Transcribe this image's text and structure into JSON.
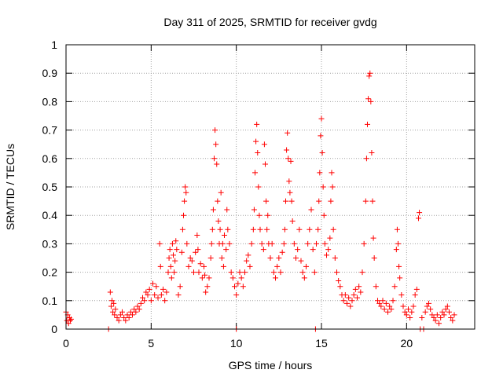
{
  "chart_data": {
    "type": "scatter",
    "title": "Day 311 of 2025, SRMTID for receiver gvdg",
    "xlabel": "GPS time / hours",
    "ylabel": "SRMTID / TECUs",
    "xlim": [
      0,
      24
    ],
    "ylim": [
      0,
      1
    ],
    "grid": true,
    "marker": "+",
    "series_color": "#ff0000",
    "x_ticks": [
      {
        "value": 0,
        "label": "0"
      },
      {
        "value": 5,
        "label": "5"
      },
      {
        "value": 10,
        "label": "10"
      },
      {
        "value": 15,
        "label": "15"
      },
      {
        "value": 20,
        "label": "20"
      }
    ],
    "y_ticks": [
      {
        "value": 0,
        "label": "0"
      },
      {
        "value": 0.1,
        "label": "0.1"
      },
      {
        "value": 0.2,
        "label": "0.2"
      },
      {
        "value": 0.3,
        "label": "0.3"
      },
      {
        "value": 0.4,
        "label": "0.4"
      },
      {
        "value": 0.5,
        "label": "0.5"
      },
      {
        "value": 0.6,
        "label": "0.6"
      },
      {
        "value": 0.7,
        "label": "0.7"
      },
      {
        "value": 0.8,
        "label": "0.8"
      },
      {
        "value": 0.9,
        "label": "0.9"
      },
      {
        "value": 1,
        "label": "1"
      }
    ],
    "series": [
      {
        "name": "gvdg",
        "points": [
          [
            0.0,
            0.06
          ],
          [
            0.05,
            0.03
          ],
          [
            0.1,
            0.05
          ],
          [
            0.15,
            0.02
          ],
          [
            0.2,
            0.04
          ],
          [
            0.25,
            0.03
          ],
          [
            0.3,
            0.035
          ],
          [
            2.5,
            0.0
          ],
          [
            2.6,
            0.13
          ],
          [
            2.65,
            0.08
          ],
          [
            2.7,
            0.1
          ],
          [
            2.75,
            0.06
          ],
          [
            2.8,
            0.09
          ],
          [
            2.85,
            0.05
          ],
          [
            2.9,
            0.07
          ],
          [
            3.0,
            0.04
          ],
          [
            3.1,
            0.03
          ],
          [
            3.2,
            0.05
          ],
          [
            3.3,
            0.06
          ],
          [
            3.4,
            0.04
          ],
          [
            3.5,
            0.03
          ],
          [
            3.6,
            0.05
          ],
          [
            3.7,
            0.04
          ],
          [
            3.8,
            0.06
          ],
          [
            3.9,
            0.05
          ],
          [
            4.0,
            0.07
          ],
          [
            4.1,
            0.06
          ],
          [
            4.2,
            0.08
          ],
          [
            4.3,
            0.07
          ],
          [
            4.4,
            0.09
          ],
          [
            4.5,
            0.11
          ],
          [
            4.6,
            0.1
          ],
          [
            4.7,
            0.13
          ],
          [
            4.8,
            0.12
          ],
          [
            4.9,
            0.14
          ],
          [
            5.0,
            0.1
          ],
          [
            5.1,
            0.16
          ],
          [
            5.2,
            0.12
          ],
          [
            5.3,
            0.15
          ],
          [
            5.4,
            0.11
          ],
          [
            5.5,
            0.3
          ],
          [
            5.55,
            0.22
          ],
          [
            5.6,
            0.12
          ],
          [
            5.7,
            0.14
          ],
          [
            5.8,
            0.1
          ],
          [
            5.9,
            0.13
          ],
          [
            6.0,
            0.2
          ],
          [
            6.05,
            0.25
          ],
          [
            6.1,
            0.28
          ],
          [
            6.15,
            0.22
          ],
          [
            6.2,
            0.18
          ],
          [
            6.25,
            0.3
          ],
          [
            6.3,
            0.26
          ],
          [
            6.35,
            0.2
          ],
          [
            6.4,
            0.24
          ],
          [
            6.45,
            0.31
          ],
          [
            6.5,
            0.28
          ],
          [
            6.6,
            0.12
          ],
          [
            6.7,
            0.15
          ],
          [
            6.8,
            0.27
          ],
          [
            6.85,
            0.35
          ],
          [
            6.9,
            0.4
          ],
          [
            6.95,
            0.45
          ],
          [
            7.0,
            0.5
          ],
          [
            7.05,
            0.48
          ],
          [
            7.1,
            0.3
          ],
          [
            7.2,
            0.22
          ],
          [
            7.3,
            0.25
          ],
          [
            7.4,
            0.24
          ],
          [
            7.5,
            0.2
          ],
          [
            7.6,
            0.27
          ],
          [
            7.7,
            0.33
          ],
          [
            7.75,
            0.28
          ],
          [
            7.8,
            0.2
          ],
          [
            7.9,
            0.23
          ],
          [
            8.0,
            0.18
          ],
          [
            8.1,
            0.22
          ],
          [
            8.15,
            0.19
          ],
          [
            8.2,
            0.13
          ],
          [
            8.3,
            0.15
          ],
          [
            8.4,
            0.18
          ],
          [
            8.5,
            0.25
          ],
          [
            8.55,
            0.3
          ],
          [
            8.6,
            0.35
          ],
          [
            8.65,
            0.42
          ],
          [
            8.7,
            0.6
          ],
          [
            8.75,
            0.7
          ],
          [
            8.8,
            0.65
          ],
          [
            8.85,
            0.58
          ],
          [
            8.9,
            0.45
          ],
          [
            8.95,
            0.38
          ],
          [
            9.0,
            0.3
          ],
          [
            9.05,
            0.35
          ],
          [
            9.1,
            0.48
          ],
          [
            9.15,
            0.25
          ],
          [
            9.2,
            0.3
          ],
          [
            9.25,
            0.22
          ],
          [
            9.3,
            0.33
          ],
          [
            9.4,
            0.28
          ],
          [
            9.45,
            0.42
          ],
          [
            9.5,
            0.35
          ],
          [
            9.6,
            0.3
          ],
          [
            9.7,
            0.2
          ],
          [
            9.8,
            0.18
          ],
          [
            9.9,
            0.15
          ],
          [
            10.0,
            0.0
          ],
          [
            10.0,
            0.12
          ],
          [
            10.1,
            0.16
          ],
          [
            10.2,
            0.2
          ],
          [
            10.3,
            0.18
          ],
          [
            10.4,
            0.15
          ],
          [
            10.5,
            0.2
          ],
          [
            10.6,
            0.24
          ],
          [
            10.7,
            0.26
          ],
          [
            10.8,
            0.22
          ],
          [
            10.9,
            0.3
          ],
          [
            11.0,
            0.35
          ],
          [
            11.05,
            0.42
          ],
          [
            11.1,
            0.55
          ],
          [
            11.15,
            0.66
          ],
          [
            11.2,
            0.72
          ],
          [
            11.25,
            0.62
          ],
          [
            11.3,
            0.5
          ],
          [
            11.35,
            0.4
          ],
          [
            11.4,
            0.35
          ],
          [
            11.5,
            0.3
          ],
          [
            11.6,
            0.28
          ],
          [
            11.65,
            0.65
          ],
          [
            11.7,
            0.58
          ],
          [
            11.75,
            0.45
          ],
          [
            11.8,
            0.35
          ],
          [
            11.85,
            0.4
          ],
          [
            11.9,
            0.3
          ],
          [
            12.0,
            0.25
          ],
          [
            12.1,
            0.3
          ],
          [
            12.2,
            0.2
          ],
          [
            12.3,
            0.18
          ],
          [
            12.4,
            0.22
          ],
          [
            12.5,
            0.25
          ],
          [
            12.6,
            0.2
          ],
          [
            12.7,
            0.27
          ],
          [
            12.8,
            0.3
          ],
          [
            12.85,
            0.35
          ],
          [
            12.9,
            0.45
          ],
          [
            12.95,
            0.63
          ],
          [
            13.0,
            0.69
          ],
          [
            13.05,
            0.6
          ],
          [
            13.1,
            0.52
          ],
          [
            13.15,
            0.48
          ],
          [
            13.2,
            0.59
          ],
          [
            13.25,
            0.45
          ],
          [
            13.3,
            0.38
          ],
          [
            13.4,
            0.3
          ],
          [
            13.5,
            0.25
          ],
          [
            13.6,
            0.28
          ],
          [
            13.7,
            0.35
          ],
          [
            13.8,
            0.24
          ],
          [
            13.9,
            0.2
          ],
          [
            14.0,
            0.18
          ],
          [
            14.1,
            0.22
          ],
          [
            14.2,
            0.3
          ],
          [
            14.3,
            0.35
          ],
          [
            14.4,
            0.42
          ],
          [
            14.5,
            0.28
          ],
          [
            14.6,
            0.2
          ],
          [
            14.65,
            0.0
          ],
          [
            14.7,
            0.3
          ],
          [
            14.8,
            0.35
          ],
          [
            14.85,
            0.45
          ],
          [
            14.9,
            0.55
          ],
          [
            14.95,
            0.68
          ],
          [
            15.0,
            0.74
          ],
          [
            15.05,
            0.62
          ],
          [
            15.1,
            0.5
          ],
          [
            15.15,
            0.4
          ],
          [
            15.2,
            0.3
          ],
          [
            15.3,
            0.26
          ],
          [
            15.4,
            0.28
          ],
          [
            15.5,
            0.32
          ],
          [
            15.55,
            0.45
          ],
          [
            15.6,
            0.55
          ],
          [
            15.65,
            0.5
          ],
          [
            15.7,
            0.35
          ],
          [
            15.8,
            0.25
          ],
          [
            15.9,
            0.2
          ],
          [
            16.0,
            0.17
          ],
          [
            16.1,
            0.15
          ],
          [
            16.2,
            0.12
          ],
          [
            16.3,
            0.1
          ],
          [
            16.4,
            0.12
          ],
          [
            16.5,
            0.09
          ],
          [
            16.6,
            0.11
          ],
          [
            16.7,
            0.08
          ],
          [
            16.8,
            0.1
          ],
          [
            16.9,
            0.12
          ],
          [
            17.0,
            0.14
          ],
          [
            17.1,
            0.11
          ],
          [
            17.2,
            0.15
          ],
          [
            17.3,
            0.13
          ],
          [
            17.4,
            0.2
          ],
          [
            17.5,
            0.3
          ],
          [
            17.6,
            0.45
          ],
          [
            17.65,
            0.6
          ],
          [
            17.7,
            0.72
          ],
          [
            17.75,
            0.81
          ],
          [
            17.8,
            0.89
          ],
          [
            17.85,
            0.9
          ],
          [
            17.9,
            0.8
          ],
          [
            17.95,
            0.62
          ],
          [
            18.0,
            0.45
          ],
          [
            18.05,
            0.32
          ],
          [
            18.1,
            0.25
          ],
          [
            18.2,
            0.15
          ],
          [
            18.3,
            0.1
          ],
          [
            18.4,
            0.09
          ],
          [
            18.5,
            0.08
          ],
          [
            18.6,
            0.1
          ],
          [
            18.7,
            0.07
          ],
          [
            18.8,
            0.09
          ],
          [
            18.9,
            0.06
          ],
          [
            19.0,
            0.08
          ],
          [
            19.1,
            0.07
          ],
          [
            19.2,
            0.1
          ],
          [
            19.3,
            0.15
          ],
          [
            19.4,
            0.28
          ],
          [
            19.45,
            0.35
          ],
          [
            19.5,
            0.3
          ],
          [
            19.55,
            0.22
          ],
          [
            19.6,
            0.18
          ],
          [
            19.7,
            0.12
          ],
          [
            19.8,
            0.08
          ],
          [
            19.9,
            0.06
          ],
          [
            20.0,
            0.05
          ],
          [
            20.1,
            0.07
          ],
          [
            20.2,
            0.04
          ],
          [
            20.3,
            0.06
          ],
          [
            20.4,
            0.08
          ],
          [
            20.5,
            0.12
          ],
          [
            20.6,
            0.14
          ],
          [
            20.7,
            0.39
          ],
          [
            20.75,
            0.41
          ],
          [
            20.8,
            0.0
          ],
          [
            20.9,
            0.04
          ],
          [
            21.0,
            0.0
          ],
          [
            21.1,
            0.06
          ],
          [
            21.2,
            0.08
          ],
          [
            21.3,
            0.09
          ],
          [
            21.4,
            0.07
          ],
          [
            21.5,
            0.05
          ],
          [
            21.6,
            0.04
          ],
          [
            21.7,
            0.03
          ],
          [
            21.8,
            0.05
          ],
          [
            21.9,
            0.02
          ],
          [
            22.0,
            0.04
          ],
          [
            22.1,
            0.06
          ],
          [
            22.2,
            0.05
          ],
          [
            22.3,
            0.07
          ],
          [
            22.4,
            0.08
          ],
          [
            22.5,
            0.06
          ],
          [
            22.6,
            0.04
          ],
          [
            22.7,
            0.03
          ],
          [
            22.8,
            0.05
          ]
        ]
      }
    ]
  }
}
